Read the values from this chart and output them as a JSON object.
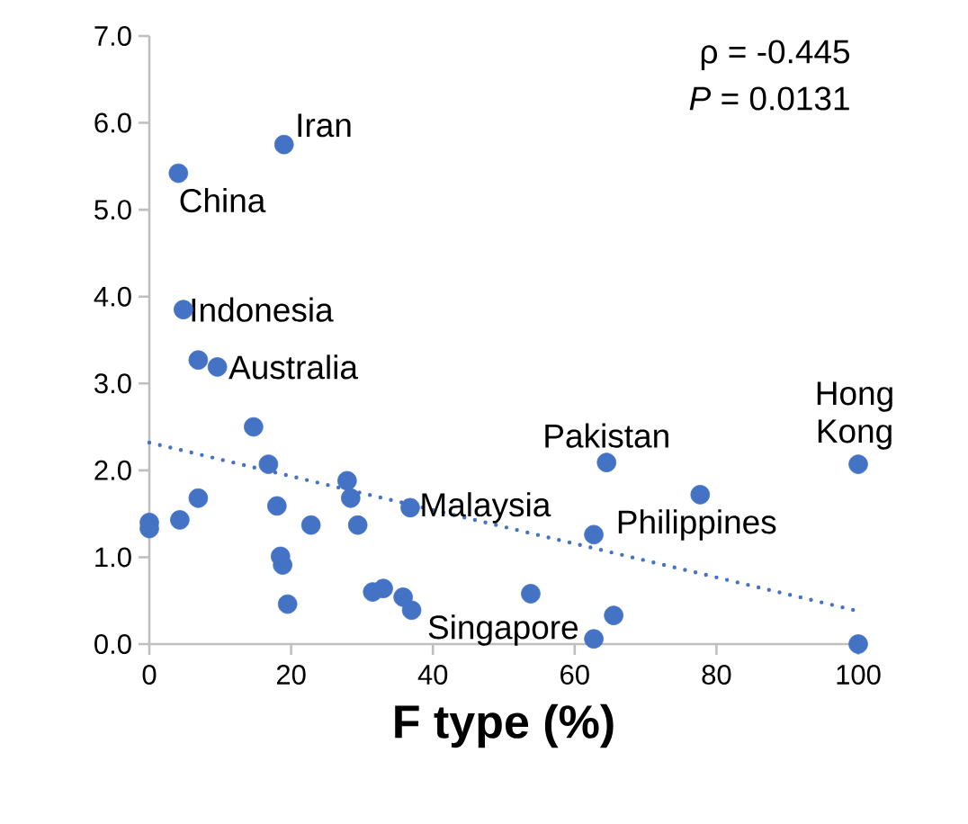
{
  "chart_data": {
    "type": "scatter",
    "xlabel": "F type (%)",
    "xlim": [
      0,
      100
    ],
    "xticks": [
      0,
      20,
      40,
      60,
      80,
      100
    ],
    "ylim": [
      0,
      7
    ],
    "yticks": [
      {
        "value": 0,
        "label": "0.0"
      },
      {
        "value": 1,
        "label": "1.0"
      },
      {
        "value": 2,
        "label": "2.0"
      },
      {
        "value": 3,
        "label": "3.0"
      },
      {
        "value": 4,
        "label": "4.0"
      },
      {
        "value": 5,
        "label": "5.0"
      },
      {
        "value": 6,
        "label": "6.0"
      },
      {
        "value": 7,
        "label": "7.0"
      }
    ],
    "grid": false,
    "series": [
      {
        "type": "scatter",
        "marker": "circle",
        "color": "#4472c4",
        "x": [
          19.0,
          4.1,
          4.8,
          6.9,
          9.6,
          14.7,
          16.8,
          6.9,
          4.3,
          0,
          0,
          18.0,
          27.9,
          28.4,
          22.8,
          29.4,
          36.8,
          18.5,
          18.8,
          19.5,
          31.5,
          33.0,
          35.8,
          37.0,
          53.8,
          62.7,
          64.5,
          77.7,
          100,
          62.7,
          65.5,
          100
        ],
        "values": [
          5.75,
          5.42,
          3.85,
          3.27,
          3.19,
          2.5,
          2.07,
          1.68,
          1.43,
          1.4,
          1.33,
          1.59,
          1.88,
          1.68,
          1.37,
          1.37,
          1.57,
          1.01,
          0.91,
          0.46,
          0.6,
          0.64,
          0.54,
          0.39,
          0.58,
          1.26,
          2.09,
          1.72,
          2.07,
          0.06,
          0.33,
          0
        ]
      },
      {
        "type": "line",
        "color": "#4472c4",
        "line_style": "dotted",
        "x": [
          0,
          100
        ],
        "values": [
          2.32,
          0.38
        ]
      }
    ],
    "annotations": [
      {
        "text": "Iran",
        "x": 19.0,
        "y": 5.75
      },
      {
        "text": "China",
        "x": 4.1,
        "y": 5.42
      },
      {
        "text": "Indonesia",
        "x": 4.8,
        "y": 3.85
      },
      {
        "text": "Australia",
        "x": 9.6,
        "y": 3.19
      },
      {
        "text": "Pakistan",
        "x": 64.5,
        "y": 2.09
      },
      {
        "text": "Hong Kong",
        "x": 100,
        "y": 2.07
      },
      {
        "text": "Malaysia",
        "x": 36.8,
        "y": 1.57
      },
      {
        "text": "Philippines",
        "x": 77.7,
        "y": 1.72
      },
      {
        "text": "Singapore",
        "x": 62.7,
        "y": 0.06
      },
      "ρ = -0.445",
      "*P* = 0.0131"
    ]
  }
}
